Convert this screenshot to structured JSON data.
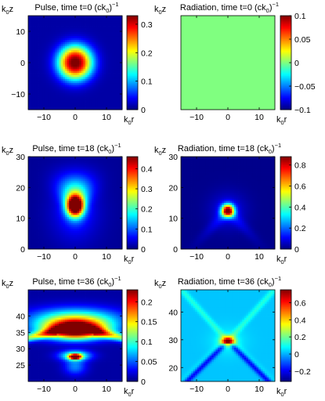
{
  "chart_data": [
    {
      "type": "heatmap",
      "title": "Pulse, time t=0 (ck",
      "title_sub": "0",
      "title_tail": ")",
      "title_sup": "−1",
      "ylabel": "k",
      "ylabel_sub": "0",
      "ylabel_tail": "z",
      "xlabel": "k",
      "xlabel_sub": "0",
      "xlabel_tail": "r",
      "xlim": [
        -15,
        15
      ],
      "ylim": [
        -15,
        15
      ],
      "xticks": [
        "-10",
        "0",
        "10"
      ],
      "xtick_values": [
        -10,
        0,
        10
      ],
      "yticks": [
        "10",
        "0",
        "-10"
      ],
      "ytick_values": [
        10,
        0,
        -10
      ],
      "colorbar": {
        "range": [
          0,
          0.33
        ],
        "ticks": [
          "0.3",
          "0.2",
          "0.1",
          "0"
        ],
        "tick_values": [
          0.3,
          0.2,
          0.1,
          0
        ]
      },
      "field": {
        "kind": "gauss",
        "peak": 0.33,
        "center": [
          0,
          0
        ],
        "width_r": 4.3,
        "width_z": 4.3
      }
    },
    {
      "type": "heatmap",
      "title": "Radiation, time t=0 (ck",
      "title_sub": "0",
      "title_tail": ")",
      "title_sup": "−1",
      "ylabel": "k",
      "ylabel_sub": "0",
      "ylabel_tail": "z",
      "xlabel": "k",
      "xlabel_sub": "0",
      "xlabel_tail": "r",
      "xlim": [
        -15,
        15
      ],
      "ylim": [
        -15,
        15
      ],
      "xticks": [
        "-10",
        "0",
        "10"
      ],
      "xtick_values": [
        -10,
        0,
        10
      ],
      "yticks": [],
      "ytick_values": [],
      "colorbar": {
        "range": [
          -0.1,
          0.1
        ],
        "ticks": [
          "0.1",
          "0.05",
          "0",
          "-0.05",
          "-0.1"
        ],
        "tick_values": [
          0.1,
          0.05,
          0,
          -0.05,
          -0.1
        ]
      },
      "field": {
        "kind": "uniform",
        "value": 0.0
      }
    },
    {
      "type": "heatmap",
      "title": "Pulse, time t=18 (ck",
      "title_sub": "0",
      "title_tail": ")",
      "title_sup": "−1",
      "ylabel": "k",
      "ylabel_sub": "0",
      "ylabel_tail": "z",
      "xlabel": "k",
      "xlabel_sub": "0",
      "xlabel_tail": "r",
      "xlim": [
        -15,
        15
      ],
      "ylim": [
        0,
        30
      ],
      "xticks": [
        "-10",
        "0",
        "10"
      ],
      "xtick_values": [
        -10,
        0,
        10
      ],
      "yticks": [
        "30",
        "20",
        "10",
        "0"
      ],
      "ytick_values": [
        30,
        20,
        10,
        0
      ],
      "colorbar": {
        "range": [
          0,
          0.46
        ],
        "ticks": [
          "0.4",
          "0.3",
          "0.2",
          "0.1",
          "0"
        ],
        "tick_values": [
          0.4,
          0.3,
          0.2,
          0.1,
          0
        ]
      },
      "field": {
        "kind": "cone",
        "peak": 0.46,
        "center": [
          0,
          14
        ],
        "width_r": 1.8,
        "width_z": 2.2
      }
    },
    {
      "type": "heatmap",
      "title": "Radiation, time t=18 (ck",
      "title_sub": "0",
      "title_tail": ")",
      "title_sup": "−1",
      "ylabel": "k",
      "ylabel_sub": "0",
      "ylabel_tail": "z",
      "xlabel": "k",
      "xlabel_sub": "0",
      "xlabel_tail": "r",
      "xlim": [
        -15,
        15
      ],
      "ylim": [
        0,
        30
      ],
      "xticks": [
        "-10",
        "0",
        "10"
      ],
      "xtick_values": [
        -10,
        0,
        10
      ],
      "yticks": [
        "30",
        "20",
        "10",
        "0"
      ],
      "ytick_values": [
        30,
        20,
        10,
        0
      ],
      "colorbar": {
        "range": [
          0,
          0.88
        ],
        "ticks": [
          "0.8",
          "0.6",
          "0.4",
          "0.2",
          "0"
        ],
        "tick_values": [
          0.8,
          0.6,
          0.4,
          0.2,
          0
        ]
      },
      "field": {
        "kind": "blob",
        "peak": 0.88,
        "center": [
          0,
          12.5
        ],
        "width_r": 1.4,
        "width_z": 1.4
      }
    },
    {
      "type": "heatmap",
      "title": "Pulse, time t=36 (ck",
      "title_sub": "0",
      "title_tail": ")",
      "title_sup": "−1",
      "ylabel": "k",
      "ylabel_sub": "0",
      "ylabel_tail": "z",
      "xlabel": "k",
      "xlabel_sub": "0",
      "xlabel_tail": "r",
      "xlim": [
        -15,
        15
      ],
      "ylim": [
        20,
        48
      ],
      "xticks": [
        "-10",
        "0",
        "10"
      ],
      "xtick_values": [
        -10,
        0,
        10
      ],
      "yticks": [
        "40",
        "35",
        "30",
        "25"
      ],
      "ytick_values": [
        40,
        35,
        30,
        25
      ],
      "colorbar": {
        "range": [
          0,
          0.23
        ],
        "ticks": [
          "0.2",
          "0.15",
          "0.1",
          "0.05",
          "0"
        ],
        "tick_values": [
          0.2,
          0.15,
          0.1,
          0.05,
          0
        ]
      },
      "field": {
        "kind": "bowl",
        "peak": 0.23,
        "center": [
          0,
          35
        ],
        "ring_z": 27.5
      }
    },
    {
      "type": "heatmap",
      "title": "Radiation, time t=36 (ck",
      "title_sub": "0",
      "title_tail": ")",
      "title_sup": "−1",
      "ylabel": "k",
      "ylabel_sub": "0",
      "ylabel_tail": "z",
      "xlabel": "k",
      "xlabel_sub": "0",
      "xlabel_tail": "r",
      "xlim": [
        -15,
        15
      ],
      "ylim": [
        15,
        48
      ],
      "xticks": [
        "-10",
        "0",
        "10"
      ],
      "xtick_values": [
        -10,
        0,
        10
      ],
      "yticks": [
        "40",
        "30",
        "20"
      ],
      "ytick_values": [
        40,
        30,
        20
      ],
      "colorbar": {
        "range": [
          -0.32,
          0.75
        ],
        "ticks": [
          "0.6",
          "0.4",
          "0.2",
          "0",
          "-0.2"
        ],
        "tick_values": [
          0.6,
          0.4,
          0.2,
          0,
          -0.2
        ]
      },
      "field": {
        "kind": "xshape",
        "peak": 0.75,
        "center": [
          0,
          29.5
        ]
      }
    }
  ]
}
